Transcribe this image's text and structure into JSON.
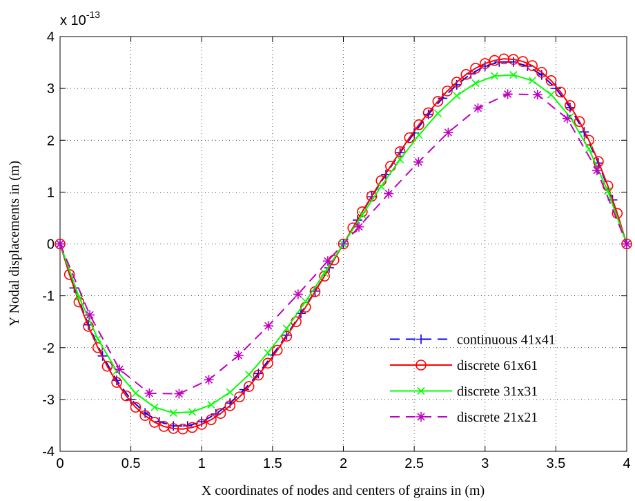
{
  "chart_data": {
    "type": "line",
    "x_label": "X coordinates of nodes and centers of grains in  (m)",
    "y_label": "Y Nodal displacements in (m)",
    "y_scale_label": "x 10",
    "y_scale_exponent": "-13",
    "xlim": [
      0,
      4
    ],
    "xticks": [
      0,
      0.5,
      1,
      1.5,
      2,
      2.5,
      3,
      3.5,
      4
    ],
    "ylim": [
      -4,
      4
    ],
    "yticks": [
      -4,
      -3,
      -2,
      -1,
      0,
      1,
      2,
      3,
      4
    ],
    "grid": true,
    "legend": "lower right",
    "series": [
      {
        "name": "continuous 41x41",
        "color": "#0000ff",
        "dash": "dashed",
        "marker": "plus",
        "x": [
          0,
          0.1,
          0.2,
          0.3,
          0.4,
          0.5,
          0.6,
          0.7,
          0.8,
          0.9,
          1,
          1.1,
          1.2,
          1.3,
          1.4,
          1.5,
          1.6,
          1.7,
          1.8,
          1.9,
          2,
          2.1,
          2.2,
          2.3,
          2.4,
          2.5,
          2.6,
          2.7,
          2.8,
          2.9,
          3,
          3.1,
          3.2,
          3.3,
          3.4,
          3.5,
          3.6,
          3.7,
          3.8,
          3.9,
          4
        ],
        "values": [
          0,
          -0.85,
          -1.56,
          -2.16,
          -2.63,
          -3.0,
          -3.26,
          -3.43,
          -3.51,
          -3.51,
          -3.43,
          -3.28,
          -3.07,
          -2.81,
          -2.5,
          -2.14,
          -1.76,
          -1.34,
          -0.91,
          -0.46,
          0,
          0.46,
          0.91,
          1.34,
          1.76,
          2.14,
          2.5,
          2.81,
          3.07,
          3.28,
          3.43,
          3.51,
          3.51,
          3.43,
          3.26,
          3.0,
          2.63,
          2.16,
          1.56,
          0.85,
          0
        ]
      },
      {
        "name": "discrete 61x61",
        "color": "#ff0000",
        "dash": "solid",
        "marker": "circle",
        "x": [
          0,
          0.0667,
          0.1333,
          0.2,
          0.2667,
          0.3333,
          0.4,
          0.4667,
          0.5333,
          0.6,
          0.6667,
          0.7333,
          0.8,
          0.8667,
          0.9333,
          1,
          1.0667,
          1.1333,
          1.2,
          1.2667,
          1.3333,
          1.4,
          1.4667,
          1.5333,
          1.6,
          1.6667,
          1.7333,
          1.8,
          1.8667,
          1.9333,
          2,
          2.0667,
          2.1333,
          2.2,
          2.2667,
          2.3333,
          2.4,
          2.4667,
          2.5333,
          2.6,
          2.6667,
          2.7333,
          2.8,
          2.8667,
          2.9333,
          3,
          3.0667,
          3.1333,
          3.2,
          3.2667,
          3.3333,
          3.4,
          3.4667,
          3.5333,
          3.6,
          3.6667,
          3.7333,
          3.8,
          3.8667,
          3.9333,
          4
        ],
        "values": [
          0,
          -0.59,
          -1.12,
          -1.59,
          -2.0,
          -2.36,
          -2.67,
          -2.93,
          -3.15,
          -3.31,
          -3.44,
          -3.52,
          -3.56,
          -3.57,
          -3.54,
          -3.48,
          -3.39,
          -3.27,
          -3.12,
          -2.95,
          -2.75,
          -2.53,
          -2.3,
          -2.05,
          -1.78,
          -1.5,
          -1.22,
          -0.92,
          -0.62,
          -0.31,
          0,
          0.31,
          0.62,
          0.92,
          1.22,
          1.5,
          1.78,
          2.05,
          2.3,
          2.53,
          2.75,
          2.95,
          3.12,
          3.27,
          3.39,
          3.48,
          3.54,
          3.57,
          3.56,
          3.52,
          3.44,
          3.31,
          3.15,
          2.93,
          2.67,
          2.36,
          2.0,
          1.59,
          1.12,
          0.59,
          0
        ]
      },
      {
        "name": "discrete 31x31",
        "color": "#00ff00",
        "dash": "solid",
        "marker": "cross",
        "x": [
          0,
          0.1333,
          0.2667,
          0.4,
          0.5333,
          0.6667,
          0.8,
          0.9333,
          1.0667,
          1.2,
          1.3333,
          1.4667,
          1.6,
          1.7333,
          1.8667,
          2,
          2.1333,
          2.2667,
          2.4,
          2.5333,
          2.6667,
          2.8,
          2.9333,
          3.0667,
          3.2,
          3.3333,
          3.4667,
          3.6,
          3.7333,
          3.8667,
          4
        ],
        "values": [
          0,
          -1.02,
          -1.83,
          -2.45,
          -2.88,
          -3.15,
          -3.26,
          -3.24,
          -3.1,
          -2.86,
          -2.52,
          -2.1,
          -1.63,
          -1.11,
          -0.56,
          0,
          0.56,
          1.11,
          1.63,
          2.1,
          2.52,
          2.86,
          3.1,
          3.24,
          3.26,
          3.15,
          2.88,
          2.45,
          1.83,
          1.02,
          0
        ]
      },
      {
        "name": "discrete 21x21",
        "color": "#bf00bf",
        "dash": "dashed",
        "marker": "star",
        "x": [
          0,
          0.21,
          0.42,
          0.63,
          0.84,
          1.05,
          1.26,
          1.47,
          1.68,
          1.89,
          2.11,
          2.32,
          2.53,
          2.74,
          2.95,
          3.16,
          3.37,
          3.58,
          3.79,
          4
        ],
        "values": [
          0,
          -1.37,
          -2.42,
          -2.88,
          -2.89,
          -2.62,
          -2.15,
          -1.58,
          -0.97,
          -0.33,
          0.33,
          0.97,
          1.58,
          2.15,
          2.62,
          2.89,
          2.88,
          2.42,
          1.42,
          0
        ]
      }
    ]
  }
}
